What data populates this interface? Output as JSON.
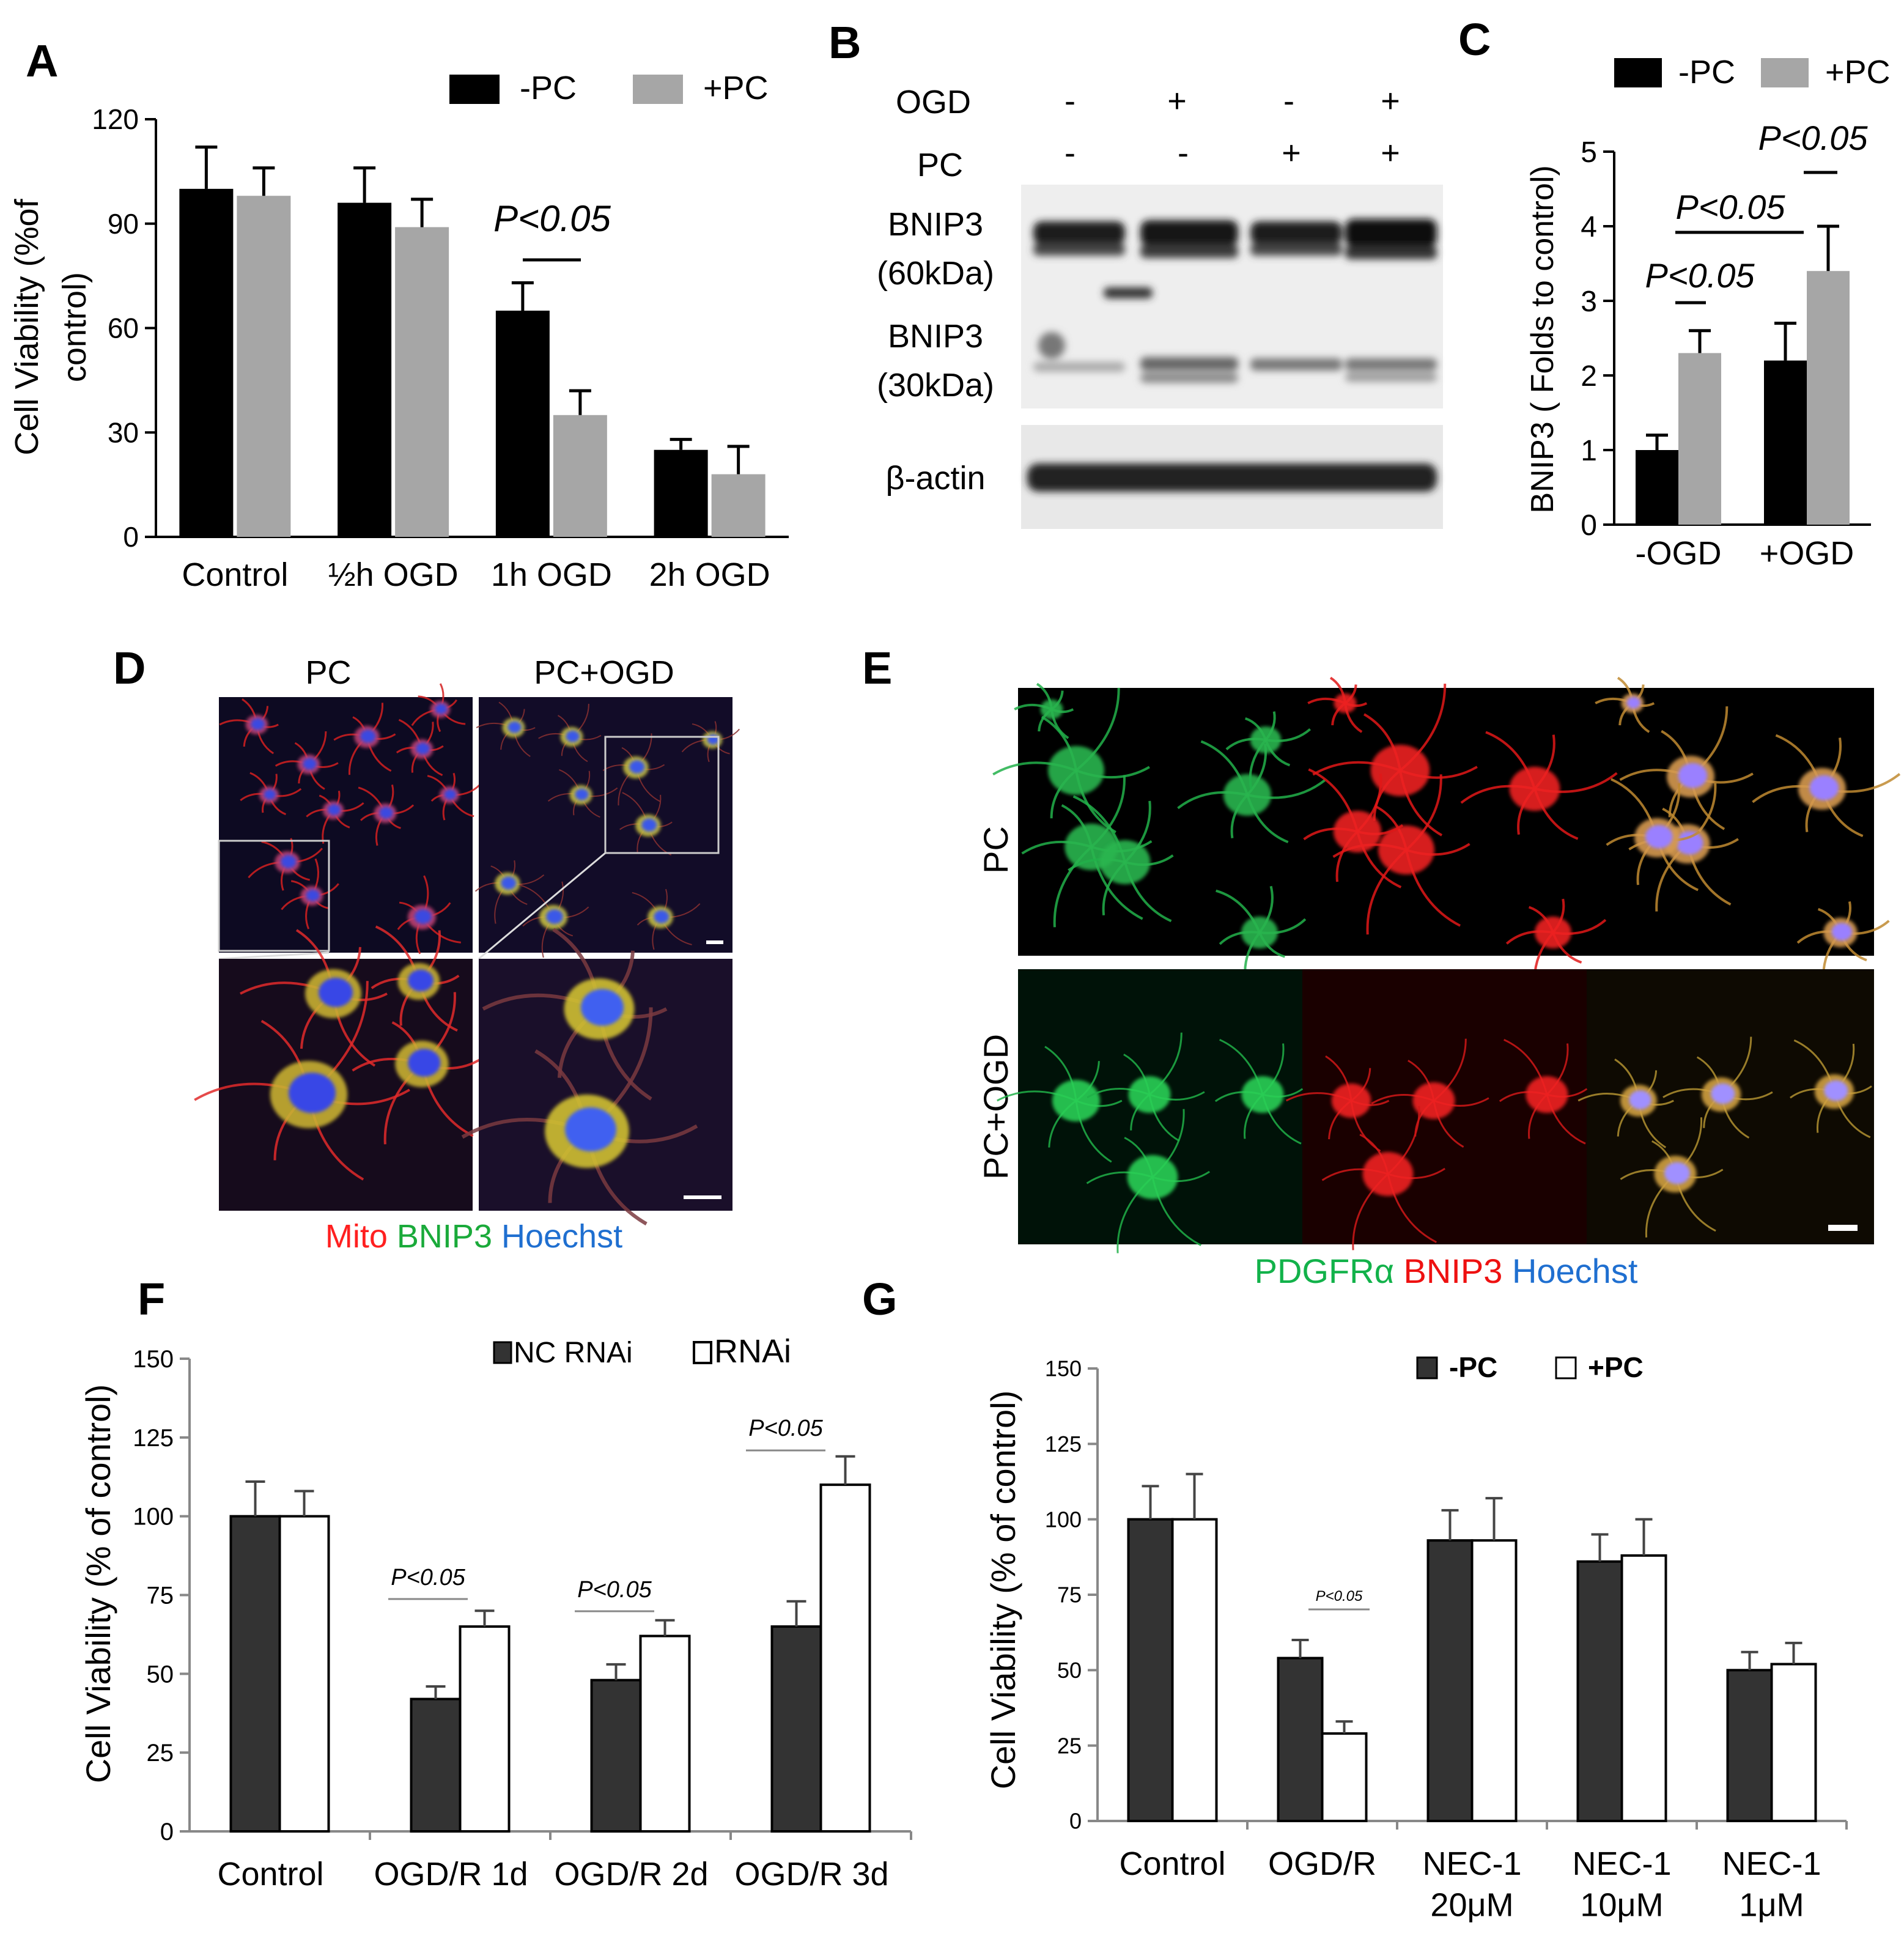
{
  "panel_letters": {
    "A": "A",
    "B": "B",
    "C": "C",
    "D": "D",
    "E": "E",
    "F": "F",
    "G": "G"
  },
  "colors": {
    "black_bar": "#000000",
    "gray_bar": "#a6a6a6",
    "dark_bar": "#333333",
    "white_bar": "#ffffff",
    "mito": "#ff2020",
    "bnip3_green": "#1aaa3a",
    "hoechst": "#1f6fd0",
    "pdgfra": "#12b24a",
    "bnip3_red": "#ee1111"
  },
  "panelA": {
    "chart_data": {
      "type": "bar",
      "categories": [
        "Control",
        "½h OGD",
        "1h OGD",
        "2h OGD"
      ],
      "series": [
        {
          "name": "-PC",
          "values": [
            100,
            96,
            65,
            25
          ],
          "errors": [
            12,
            10,
            8,
            3
          ]
        },
        {
          "name": "+PC",
          "values": [
            98,
            89,
            35,
            18
          ],
          "errors": [
            8,
            8,
            7,
            8
          ]
        }
      ],
      "ylabel_line1": "Cell Viability (%of",
      "ylabel_line2": "control)",
      "ylim": [
        0,
        120
      ],
      "yticks": [
        "0",
        "30",
        "60",
        "90",
        "120"
      ],
      "legend_position": "top-right",
      "annotations": [
        {
          "text": "P<0.05",
          "category": "1h OGD"
        }
      ]
    }
  },
  "panelB": {
    "rows": [
      {
        "label": "OGD",
        "values": [
          "-",
          "+",
          "-",
          "+"
        ]
      },
      {
        "label": "PC",
        "values": [
          "-",
          "-",
          "+",
          "+"
        ]
      }
    ],
    "bands": [
      {
        "label1": "BNIP3",
        "label2": "(60kDa)"
      },
      {
        "label1": "BNIP3",
        "label2": "(30kDa)"
      },
      {
        "label1": "β-actin",
        "label2": ""
      }
    ]
  },
  "panelC": {
    "chart_data": {
      "type": "bar",
      "categories": [
        "-OGD",
        "+OGD"
      ],
      "series": [
        {
          "name": "-PC",
          "values": [
            1.0,
            2.2
          ],
          "errors": [
            0.2,
            0.5
          ]
        },
        {
          "name": "+PC",
          "values": [
            2.3,
            3.4
          ],
          "errors": [
            0.3,
            0.6
          ]
        }
      ],
      "ylabel": "BNIP3 ( Folds to control)",
      "ylim": [
        0,
        5
      ],
      "yticks": [
        "0",
        "1",
        "2",
        "3",
        "4",
        "5"
      ],
      "legend_position": "top",
      "annotations": [
        "P<0.05",
        "P<0.05",
        "P<0.05"
      ]
    }
  },
  "panelD": {
    "col_labels": [
      "PC",
      "PC+OGD"
    ],
    "stain_labels": [
      "Mito",
      "BNIP3",
      "Hoechst"
    ]
  },
  "panelE": {
    "row_labels": [
      "PC",
      "PC+OGD"
    ],
    "stain_labels": [
      "PDGFRα",
      "BNIP3",
      "Hoechst"
    ]
  },
  "panelF": {
    "chart_data": {
      "type": "bar",
      "categories": [
        "Control",
        "OGD/R 1d",
        "OGD/R 2d",
        "OGD/R 3d"
      ],
      "series": [
        {
          "name": "NC RNAi",
          "values": [
            100,
            42,
            48,
            65
          ],
          "errors": [
            11,
            4,
            5,
            8
          ]
        },
        {
          "name": "RNAi",
          "values": [
            100,
            65,
            62,
            110
          ],
          "errors": [
            8,
            5,
            5,
            9
          ]
        }
      ],
      "ylabel": "Cell Viability (% of control)",
      "ylim": [
        0,
        150
      ],
      "yticks": [
        "0",
        "25",
        "50",
        "75",
        "100",
        "125",
        "150"
      ],
      "legend_position": "top",
      "annotations": [
        "P<0.05",
        "P<0.05",
        "P<0.05"
      ]
    }
  },
  "panelG": {
    "chart_data": {
      "type": "bar",
      "categories": [
        [
          "Control"
        ],
        [
          "OGD/R"
        ],
        [
          "NEC-1",
          "20μM"
        ],
        [
          "NEC-1",
          "10μM"
        ],
        [
          "NEC-1",
          "1μM"
        ]
      ],
      "series": [
        {
          "name": "-PC",
          "values": [
            100,
            54,
            93,
            86,
            50
          ],
          "errors": [
            11,
            6,
            10,
            9,
            6
          ]
        },
        {
          "name": "+PC",
          "values": [
            100,
            29,
            93,
            88,
            52
          ],
          "errors": [
            15,
            4,
            14,
            12,
            7
          ]
        }
      ],
      "ylabel": "Cell Viability (% of control)",
      "ylim": [
        0,
        150
      ],
      "yticks": [
        "0",
        "25",
        "50",
        "75",
        "100",
        "125",
        "150"
      ],
      "legend_position": "top",
      "annotations": [
        "P<0.05"
      ]
    }
  }
}
